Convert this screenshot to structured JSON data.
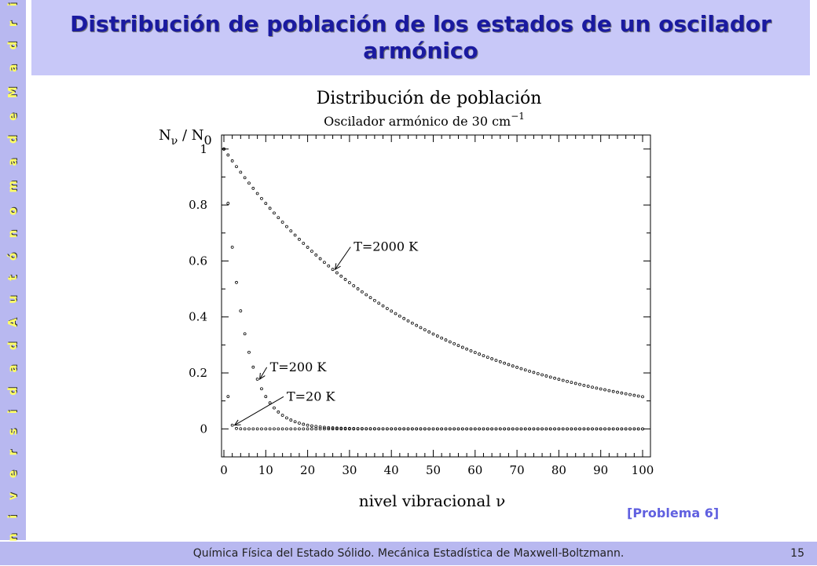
{
  "sidebar": {
    "text": "U n i v e r s i d a d   A u t ó n o m a   d e   M a d r i d"
  },
  "header": {
    "title": "Distribución de población de los estados de un oscilador armónico"
  },
  "problem_ref": "[Problema 6]",
  "footer": {
    "text": "Química Física del Estado Sólido. Mecánica Estadística de Maxwell-Boltzmann.",
    "page": "15"
  },
  "colors": {
    "sidebar": "#b8b8f0",
    "title_bg": "#c8c8f8",
    "title_fg": "#1a1aa0",
    "sidebar_fg": "#ffff66",
    "problem_fg": "#6060e0"
  },
  "chart_data": {
    "type": "scatter",
    "title": "Distribución de población",
    "subtitle": "Oscilador armónico de 30 cm",
    "subtitle_sup": "−1",
    "ylabel_main": "N",
    "ylabel_sub1": "ν",
    "ylabel_mid": " / N",
    "ylabel_sub2": "0",
    "xlabel": "nivel vibracional  ν",
    "xlim": [
      0,
      100
    ],
    "ylim": [
      -0.1,
      1.05
    ],
    "xticks": [
      {
        "v": 0,
        "label": "0"
      },
      {
        "v": 10,
        "label": "10"
      },
      {
        "v": 20,
        "label": "20"
      },
      {
        "v": 30,
        "label": "30"
      },
      {
        "v": 40,
        "label": "40"
      },
      {
        "v": 50,
        "label": "50"
      },
      {
        "v": 60,
        "label": "60"
      },
      {
        "v": 70,
        "label": "70"
      },
      {
        "v": 80,
        "label": "80"
      },
      {
        "v": 90,
        "label": "90"
      },
      {
        "v": 100,
        "label": "100"
      }
    ],
    "yticks": [
      {
        "v": 0,
        "label": "0"
      },
      {
        "v": 0.2,
        "label": "0.2"
      },
      {
        "v": 0.4,
        "label": "0.4"
      },
      {
        "v": 0.6,
        "label": "0.6"
      },
      {
        "v": 0.8,
        "label": "0.8"
      },
      {
        "v": 1,
        "label": "1"
      }
    ],
    "series": [
      {
        "name": "T=2000 K",
        "ratio": 0.9786,
        "label_at": {
          "x": 31,
          "y": 0.65
        },
        "arrow_to": 26
      },
      {
        "name": "T=200 K",
        "ratio": 0.8058,
        "label_at": {
          "x": 11,
          "y": 0.22
        },
        "arrow_to": 8
      },
      {
        "name": "T=20 K",
        "ratio": 0.1155,
        "label_at": {
          "x": 15,
          "y": 0.115
        },
        "arrow_to": 2
      }
    ]
  }
}
